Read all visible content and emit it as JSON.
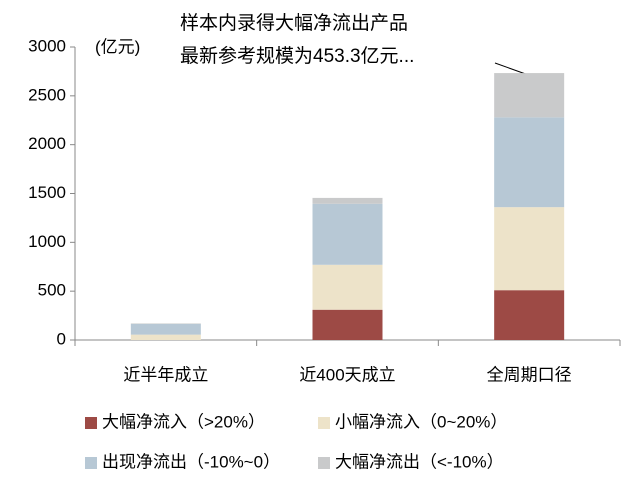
{
  "chart_data": {
    "type": "stacked_bar",
    "annotation": [
      "样本内录得大幅净流出产品",
      "最新参考规模为453.3亿元..."
    ],
    "y_label": "(亿元)",
    "categories": [
      "近半年成立",
      "近400天成立",
      "全周期口径"
    ],
    "series": [
      {
        "name": "大幅净流入（>20%）",
        "color": "#9d4a45",
        "values": [
          0,
          310,
          510
        ]
      },
      {
        "name": "小幅净流入（0~20%）",
        "color": "#ede3c9",
        "values": [
          55,
          460,
          850
        ]
      },
      {
        "name": "出现净流出（-10%~0）",
        "color": "#b7c8d5",
        "values": [
          110,
          625,
          920
        ]
      },
      {
        "name": "大幅净流出（<-10%）",
        "color": "#c9cacb",
        "values": [
          5,
          60,
          453
        ]
      }
    ],
    "ylim": [
      0,
      3000
    ],
    "yticks": [
      0,
      500,
      1000,
      1500,
      2000,
      2500,
      3000
    ]
  }
}
